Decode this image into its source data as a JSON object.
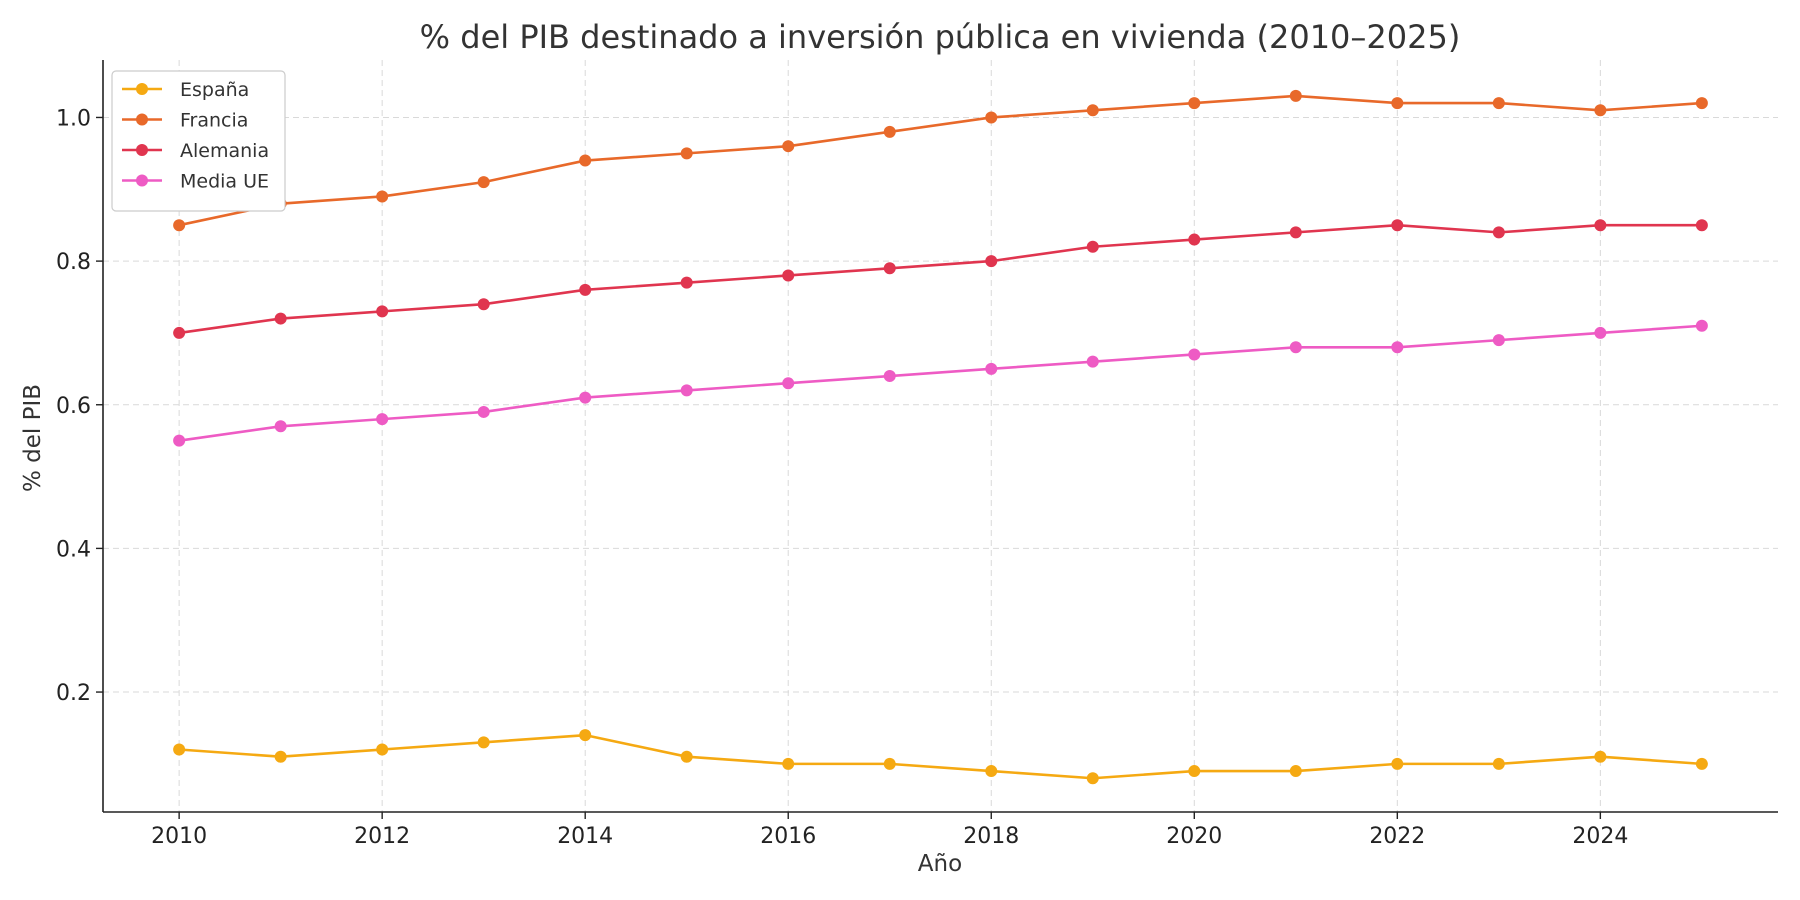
{
  "chart_data": {
    "type": "line",
    "title": "% del PIB destinado a inversión pública en vivienda (2010–2025)",
    "xlabel": "Año",
    "ylabel": "% del PIB",
    "x": [
      2010,
      2011,
      2012,
      2013,
      2014,
      2015,
      2016,
      2017,
      2018,
      2019,
      2020,
      2021,
      2022,
      2023,
      2024,
      2025
    ],
    "xlim": [
      2009.25,
      2025.75
    ],
    "ylim": [
      0.033,
      1.08
    ],
    "xticks": [
      "2010",
      "2012",
      "2014",
      "2016",
      "2018",
      "2020",
      "2022",
      "2024"
    ],
    "yticks": [
      "0.2",
      "0.4",
      "0.6",
      "0.8",
      "1.0"
    ],
    "grid": true,
    "legend_position": "top-left",
    "series": [
      {
        "name": "España",
        "color": "#F5A912",
        "values": [
          0.12,
          0.11,
          0.12,
          0.13,
          0.14,
          0.11,
          0.1,
          0.1,
          0.09,
          0.08,
          0.09,
          0.09,
          0.1,
          0.1,
          0.11,
          0.1
        ]
      },
      {
        "name": "Francia",
        "color": "#E8692A",
        "values": [
          0.85,
          0.88,
          0.89,
          0.91,
          0.94,
          0.95,
          0.96,
          0.98,
          1.0,
          1.01,
          1.02,
          1.03,
          1.02,
          1.02,
          1.01,
          1.02
        ]
      },
      {
        "name": "Alemania",
        "color": "#E0354F",
        "values": [
          0.7,
          0.72,
          0.73,
          0.74,
          0.76,
          0.77,
          0.78,
          0.79,
          0.8,
          0.82,
          0.83,
          0.84,
          0.85,
          0.84,
          0.85,
          0.85
        ]
      },
      {
        "name": "Media UE",
        "color": "#EE5BC4",
        "values": [
          0.55,
          0.57,
          0.58,
          0.59,
          0.61,
          0.62,
          0.63,
          0.64,
          0.65,
          0.66,
          0.67,
          0.68,
          0.68,
          0.69,
          0.7,
          0.71
        ]
      }
    ]
  }
}
